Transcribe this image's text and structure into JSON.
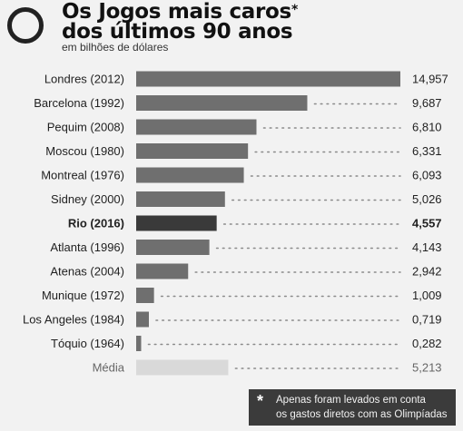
{
  "header": {
    "title_line1": "Os Jogos mais caros",
    "title_asterisk": "*",
    "title_line2": "dos últimos 90 anos",
    "subtitle": "em bilhões de dólares"
  },
  "note": {
    "asterisk": "*",
    "line1": "Apenas foram levados em conta",
    "line2": "os gastos diretos com as Olimpíadas"
  },
  "colors": {
    "bar": "#6f6f6f",
    "highlight": "#3a3a3a",
    "average": "#d9d9d9",
    "dots": "#8a8a8a"
  },
  "chart_data": {
    "type": "bar",
    "orientation": "horizontal",
    "title": "Os Jogos mais caros dos últimos 90 anos",
    "subtitle": "em bilhões de dólares",
    "categories": [
      "Londres (2012)",
      "Barcelona (1992)",
      "Pequim (2008)",
      "Moscou (1980)",
      "Montreal (1976)",
      "Sidney (2000)",
      "Rio (2016)",
      "Atlanta (1996)",
      "Atenas (2004)",
      "Munique (1972)",
      "Los Angeles (1984)",
      "Tóquio (1964)",
      "Média"
    ],
    "values": [
      14.957,
      9.687,
      6.81,
      6.331,
      6.093,
      5.026,
      4.557,
      4.143,
      2.942,
      1.009,
      0.719,
      0.282,
      5.213
    ],
    "value_labels": [
      "14,957",
      "9,687",
      "6,810",
      "6,331",
      "6,093",
      "5,026",
      "4,557",
      "4,143",
      "2,942",
      "1,009",
      "0,719",
      "0,282",
      "5,213"
    ],
    "highlight": "Rio (2016)",
    "average_category": "Média",
    "xlim": [
      0,
      14.957
    ],
    "grid": false
  }
}
